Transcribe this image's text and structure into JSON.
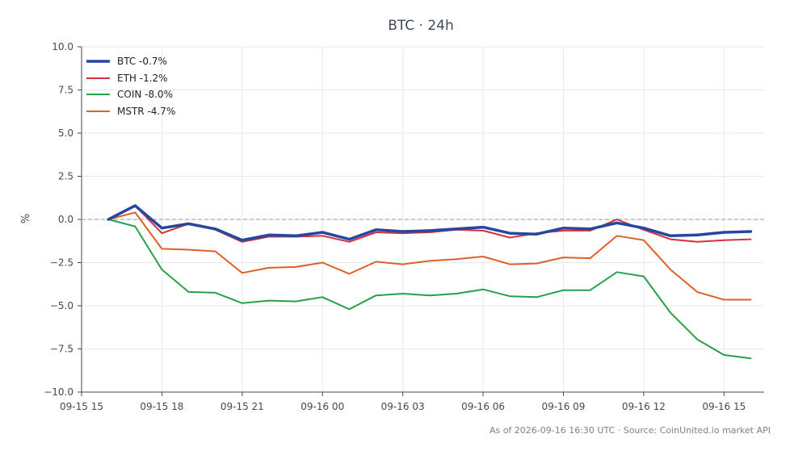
{
  "chart_data": {
    "type": "line",
    "title": "BTC · 24h",
    "ylabel": "%",
    "xlabel": "",
    "ylim": [
      -10,
      10
    ],
    "yticks": [
      "10.0",
      "7.5",
      "5.0",
      "2.5",
      "0.0",
      "−2.5",
      "−5.0",
      "−7.5",
      "−10.0"
    ],
    "ytick_values": [
      10,
      7.5,
      5,
      2.5,
      0,
      -2.5,
      -5,
      -7.5,
      -10
    ],
    "xlim": [
      0,
      25.5
    ],
    "xticks": [
      "09-15 15",
      "09-15 18",
      "09-15 21",
      "09-16 00",
      "09-16 03",
      "09-16 06",
      "09-16 09",
      "09-16 12",
      "09-16 15"
    ],
    "xtick_values": [
      0,
      3,
      6,
      9,
      12,
      15,
      18,
      21,
      24
    ],
    "x": [
      1,
      2,
      3,
      4,
      5,
      6,
      7,
      8,
      9,
      10,
      11,
      12,
      13,
      14,
      15,
      16,
      17,
      18,
      19,
      20,
      21,
      22,
      23,
      24,
      25
    ],
    "zero_line": true,
    "grid": true,
    "legend_position": "top-left",
    "series": [
      {
        "name": "BTC -0.7%",
        "color": "#2547a0",
        "width": 3.5,
        "values": [
          0.0,
          0.8,
          -0.5,
          -0.25,
          -0.55,
          -1.2,
          -0.9,
          -0.95,
          -0.75,
          -1.15,
          -0.6,
          -0.7,
          -0.65,
          -0.55,
          -0.45,
          -0.8,
          -0.85,
          -0.5,
          -0.55,
          -0.2,
          -0.5,
          -0.95,
          -0.9,
          -0.75,
          -0.7
        ]
      },
      {
        "name": "ETH -1.2%",
        "color": "#d2303a",
        "width": 2,
        "values": [
          0.0,
          0.8,
          -0.8,
          -0.25,
          -0.6,
          -1.3,
          -1.0,
          -1.0,
          -0.95,
          -1.3,
          -0.75,
          -0.8,
          -0.75,
          -0.6,
          -0.65,
          -1.05,
          -0.8,
          -0.65,
          -0.65,
          0.0,
          -0.6,
          -1.15,
          -1.3,
          -1.2,
          -1.15
        ]
      },
      {
        "name": "COIN -8.0%",
        "color": "#25a148",
        "width": 2,
        "values": [
          0.0,
          -0.4,
          -2.9,
          -4.2,
          -4.25,
          -4.85,
          -4.7,
          -4.75,
          -4.5,
          -5.2,
          -4.4,
          -4.3,
          -4.4,
          -4.3,
          -4.05,
          -4.45,
          -4.5,
          -4.1,
          -4.1,
          -3.05,
          -3.3,
          -5.4,
          -6.95,
          -7.85,
          -8.05
        ]
      },
      {
        "name": "MSTR -4.7%",
        "color": "#dd6126",
        "width": 2,
        "values": [
          0.0,
          0.4,
          -1.7,
          -1.75,
          -1.85,
          -3.1,
          -2.8,
          -2.75,
          -2.5,
          -3.15,
          -2.45,
          -2.6,
          -2.4,
          -2.3,
          -2.15,
          -2.6,
          -2.55,
          -2.2,
          -2.25,
          -0.95,
          -1.2,
          -2.9,
          -4.2,
          -4.65,
          -4.65
        ]
      }
    ],
    "footnote": "As of 2026-09-16 16:30 UTC · Source: CoinUnited.io market API"
  }
}
